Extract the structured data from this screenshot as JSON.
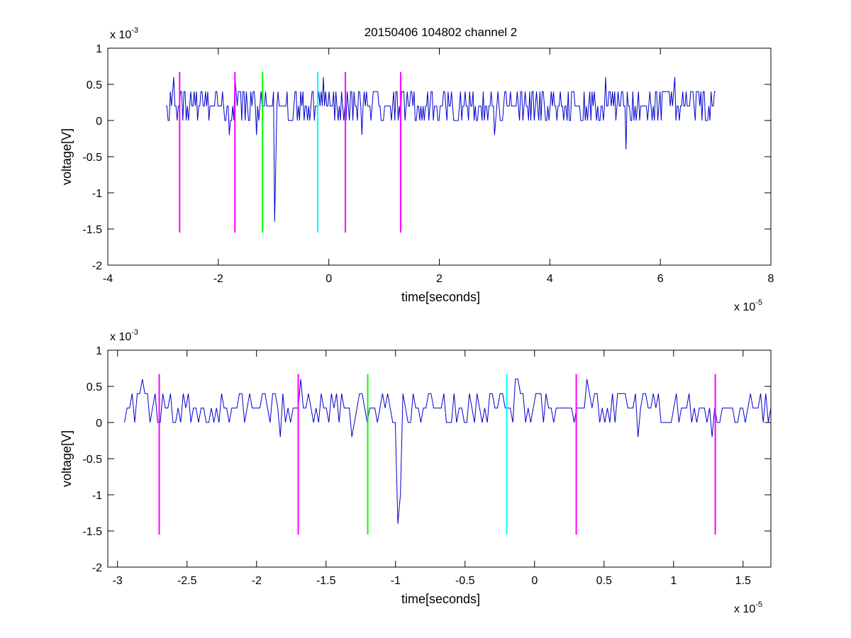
{
  "chart_data": [
    {
      "type": "line",
      "title": "20150406 104802 channel 2",
      "xlabel": "time[seconds]",
      "ylabel": "voltage[V]",
      "x_exponent_label": {
        "base": "x 10",
        "exp": "-5"
      },
      "y_exponent_label": {
        "base": "x 10",
        "exp": "-3"
      },
      "xlim": [
        -4,
        8
      ],
      "ylim": [
        -2,
        1
      ],
      "x_ticks": [
        -4,
        -2,
        0,
        2,
        4,
        6,
        8
      ],
      "x_tick_labels": [
        "-4",
        "-2",
        "0",
        "2",
        "4",
        "6",
        "8"
      ],
      "y_ticks": [
        -2,
        -1.5,
        -1,
        -0.5,
        0,
        0.5,
        1
      ],
      "y_tick_labels": [
        "-2",
        "-1.5",
        "-1",
        "-0.5",
        "0",
        "0.5",
        "1"
      ],
      "grid": false,
      "signal": {
        "color": "#0000cc",
        "x_range": [
          -2.95,
          7.0
        ],
        "baseline": 0.2,
        "levels": [
          0,
          0.2,
          0.4
        ],
        "spikes": [
          {
            "x": -2.8,
            "y": 0.6
          },
          {
            "x": -1.8,
            "y": -0.2
          },
          {
            "x": -1.7,
            "y": 0.6
          },
          {
            "x": -1.3,
            "y": -0.2
          },
          {
            "x": -0.98,
            "y": -1.4
          },
          {
            "x": -0.97,
            "y": -0.6
          },
          {
            "x": -0.1,
            "y": 0.6
          },
          {
            "x": 0.6,
            "y": -0.2
          },
          {
            "x": 3.0,
            "y": -0.2
          },
          {
            "x": 5.0,
            "y": 0.6
          },
          {
            "x": 5.37,
            "y": -0.4
          },
          {
            "x": 6.27,
            "y": 0.6
          }
        ]
      },
      "markers": [
        {
          "x": -2.7,
          "color": "#ff00ff"
        },
        {
          "x": -1.7,
          "color": "#ff00ff"
        },
        {
          "x": -1.2,
          "color": "#00ff00"
        },
        {
          "x": -0.2,
          "color": "#00ffff"
        },
        {
          "x": 0.3,
          "color": "#ff00ff"
        },
        {
          "x": 1.3,
          "color": "#ff00ff"
        }
      ],
      "marker_y_range": [
        -1.55,
        0.67
      ]
    },
    {
      "type": "line",
      "title": "",
      "xlabel": "time[seconds]",
      "ylabel": "voltage[V]",
      "x_exponent_label": {
        "base": "x 10",
        "exp": "-5"
      },
      "y_exponent_label": {
        "base": "x 10",
        "exp": "-3"
      },
      "xlim": [
        -3.07,
        1.7
      ],
      "ylim": [
        -2,
        1
      ],
      "x_ticks": [
        -3,
        -2.5,
        -2,
        -1.5,
        -1,
        -0.5,
        0,
        0.5,
        1,
        1.5
      ],
      "x_tick_labels": [
        "-3",
        "-2.5",
        "-2",
        "-1.5",
        "-1",
        "-0.5",
        "0",
        "0.5",
        "1",
        "1.5"
      ],
      "y_ticks": [
        -2,
        -1.5,
        -1,
        -0.5,
        0,
        0.5,
        1
      ],
      "y_tick_labels": [
        "-2",
        "-1.5",
        "-1",
        "-0.5",
        "0",
        "0.5",
        "1"
      ],
      "grid": false,
      "signal": {
        "color": "#0000cc",
        "x_range": [
          -2.95,
          1.7
        ],
        "baseline": 0.2,
        "levels": [
          0,
          0.2,
          0.4
        ],
        "spikes": [
          {
            "x": -2.83,
            "y": 0.6
          },
          {
            "x": -1.83,
            "y": -0.2
          },
          {
            "x": -1.69,
            "y": 0.6
          },
          {
            "x": -1.32,
            "y": -0.2
          },
          {
            "x": -0.98,
            "y": -1.4
          },
          {
            "x": -0.97,
            "y": -1.0
          },
          {
            "x": -0.14,
            "y": 0.6
          },
          {
            "x": -0.12,
            "y": 0.6
          },
          {
            "x": 0.38,
            "y": 0.6
          },
          {
            "x": 0.75,
            "y": -0.2
          },
          {
            "x": 1.28,
            "y": -0.2
          }
        ]
      },
      "markers": [
        {
          "x": -2.7,
          "color": "#ff00ff"
        },
        {
          "x": -1.7,
          "color": "#ff00ff"
        },
        {
          "x": -1.2,
          "color": "#00ff00"
        },
        {
          "x": -0.2,
          "color": "#00ffff"
        },
        {
          "x": 0.3,
          "color": "#ff00ff"
        },
        {
          "x": 1.3,
          "color": "#ff00ff"
        }
      ],
      "marker_y_range": [
        -1.55,
        0.67
      ]
    }
  ]
}
